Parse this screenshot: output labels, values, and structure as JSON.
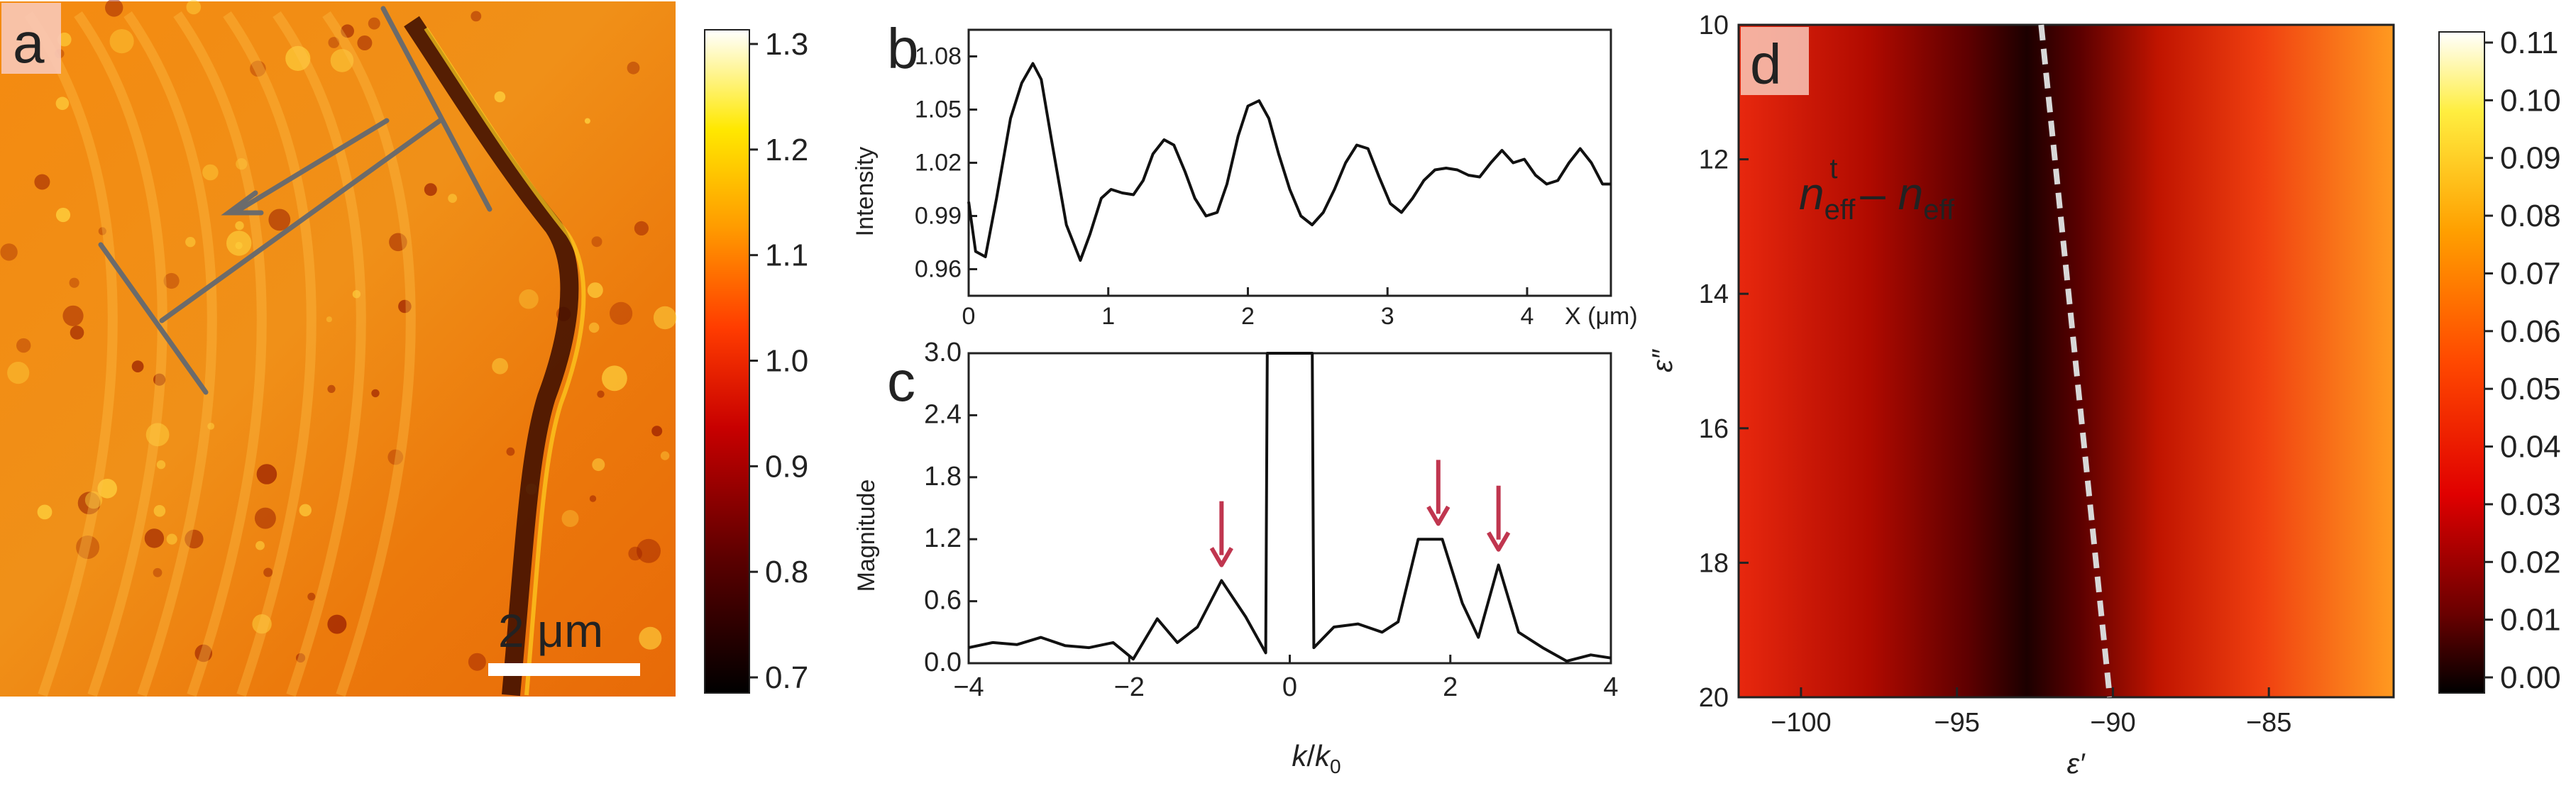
{
  "panels": {
    "a": {
      "label": "a",
      "scalebar_text": "2 μm",
      "colorbar": {
        "ticks": [
          0.7,
          0.8,
          0.9,
          1.0,
          1.1,
          1.2,
          1.3
        ],
        "tick_labels": [
          "0.7",
          "0.8",
          "0.9",
          "1.0",
          "1.1",
          "1.2",
          "1.3"
        ]
      }
    },
    "b": {
      "label": "b"
    },
    "c": {
      "label": "c"
    },
    "d": {
      "label": "d",
      "annotation_n1": "n",
      "annotation_sub1": "eff",
      "annotation_sup1": "t",
      "annotation_dash": " – ",
      "annotation_n2": "n",
      "annotation_sub2": "eff",
      "colorbar": {
        "ticks": [
          0.0,
          0.01,
          0.02,
          0.03,
          0.04,
          0.05,
          0.06,
          0.07,
          0.08,
          0.09,
          0.1,
          0.11
        ],
        "tick_labels": [
          "0.00",
          "0.01",
          "0.02",
          "0.03",
          "0.04",
          "0.05",
          "0.06",
          "0.07",
          "0.08",
          "0.09",
          "0.10",
          "0.11"
        ]
      }
    }
  },
  "colors": {
    "curve": "#111111",
    "arrow": "#c0364f",
    "dashed": "#d8d8d8",
    "guide": "#6b6b6b"
  },
  "chart_data": [
    {
      "panel": "b",
      "type": "line",
      "xlabel": "X (μm)",
      "ylabel": "Intensity",
      "xlim": [
        0,
        4.6
      ],
      "ylim": [
        0.945,
        1.095
      ],
      "xticks": [
        0,
        1,
        2,
        3,
        4
      ],
      "xtick_labels": [
        "0",
        "1",
        "2",
        "3",
        "4"
      ],
      "yticks": [
        0.96,
        0.99,
        1.02,
        1.05,
        1.08
      ],
      "ytick_labels": [
        "0.96",
        "0.99",
        "1.02",
        "1.05",
        "1.08"
      ],
      "x": [
        0.0,
        0.05,
        0.12,
        0.2,
        0.3,
        0.38,
        0.46,
        0.52,
        0.6,
        0.7,
        0.8,
        0.87,
        0.95,
        1.02,
        1.1,
        1.18,
        1.25,
        1.32,
        1.4,
        1.47,
        1.55,
        1.62,
        1.7,
        1.78,
        1.85,
        1.93,
        2.0,
        2.08,
        2.15,
        2.22,
        2.3,
        2.38,
        2.46,
        2.54,
        2.62,
        2.7,
        2.78,
        2.86,
        2.94,
        3.02,
        3.1,
        3.18,
        3.26,
        3.34,
        3.42,
        3.5,
        3.58,
        3.66,
        3.74,
        3.82,
        3.9,
        3.98,
        4.06,
        4.14,
        4.22,
        4.3,
        4.38,
        4.46,
        4.54,
        4.6
      ],
      "y": [
        0.998,
        0.97,
        0.967,
        1.0,
        1.045,
        1.065,
        1.076,
        1.067,
        1.03,
        0.985,
        0.965,
        0.98,
        1.0,
        1.005,
        1.003,
        1.002,
        1.01,
        1.025,
        1.033,
        1.03,
        1.015,
        1.0,
        0.99,
        0.992,
        1.008,
        1.035,
        1.052,
        1.055,
        1.045,
        1.025,
        1.005,
        0.99,
        0.985,
        0.992,
        1.005,
        1.02,
        1.03,
        1.028,
        1.012,
        0.997,
        0.992,
        1.0,
        1.01,
        1.016,
        1.017,
        1.016,
        1.013,
        1.012,
        1.02,
        1.027,
        1.02,
        1.022,
        1.013,
        1.008,
        1.01,
        1.02,
        1.028,
        1.02,
        1.008,
        1.008
      ]
    },
    {
      "panel": "c",
      "type": "line",
      "xlabel_main": "k",
      "xlabel_slash": "/",
      "xlabel_k0": "k",
      "xlabel_sub": "0",
      "ylabel": "Magnitude",
      "xlim": [
        -4,
        4
      ],
      "ylim": [
        0,
        3.0
      ],
      "xticks": [
        -4,
        -2,
        0,
        2,
        4
      ],
      "xtick_labels": [
        "−4",
        "−2",
        "0",
        "2",
        "4"
      ],
      "yticks": [
        0.0,
        0.6,
        1.2,
        1.8,
        2.4,
        3.0
      ],
      "ytick_labels": [
        "0.0",
        "0.6",
        "1.2",
        "1.8",
        "2.4",
        "3.0"
      ],
      "x": [
        -4.0,
        -3.7,
        -3.4,
        -3.1,
        -2.8,
        -2.5,
        -2.2,
        -1.95,
        -1.65,
        -1.4,
        -1.15,
        -0.85,
        -0.55,
        -0.3,
        -0.28,
        0.28,
        0.3,
        0.55,
        0.85,
        1.15,
        1.35,
        1.6,
        1.9,
        2.15,
        2.35,
        2.6,
        2.85,
        3.15,
        3.45,
        3.75,
        4.0
      ],
      "y": [
        0.15,
        0.2,
        0.18,
        0.25,
        0.17,
        0.15,
        0.2,
        0.04,
        0.43,
        0.2,
        0.35,
        0.8,
        0.45,
        0.1,
        3.3,
        3.3,
        0.15,
        0.35,
        0.38,
        0.3,
        0.4,
        1.2,
        1.2,
        0.58,
        0.25,
        0.95,
        0.3,
        0.15,
        0.02,
        0.08,
        0.05
      ],
      "arrows_x": [
        -0.85,
        1.85,
        2.6
      ],
      "arrows_tip_y": [
        0.95,
        1.35,
        1.1
      ]
    },
    {
      "panel": "d",
      "type": "heatmap",
      "xlabel": "ε′",
      "ylabel": "ε″",
      "xlim": [
        -102,
        -81
      ],
      "ylim": [
        10,
        20
      ],
      "xticks": [
        -100,
        -95,
        -90,
        -85
      ],
      "xtick_labels": [
        "−100",
        "−95",
        "−90",
        "−85"
      ],
      "yticks": [
        10,
        12,
        14,
        16,
        18,
        20
      ],
      "ytick_labels": [
        "10",
        "12",
        "14",
        "16",
        "18",
        "20"
      ],
      "zlim": [
        0,
        0.11
      ],
      "minimum_line": {
        "x": [
          -92.3,
          -90.1
        ],
        "y": [
          10,
          20
        ]
      }
    }
  ]
}
